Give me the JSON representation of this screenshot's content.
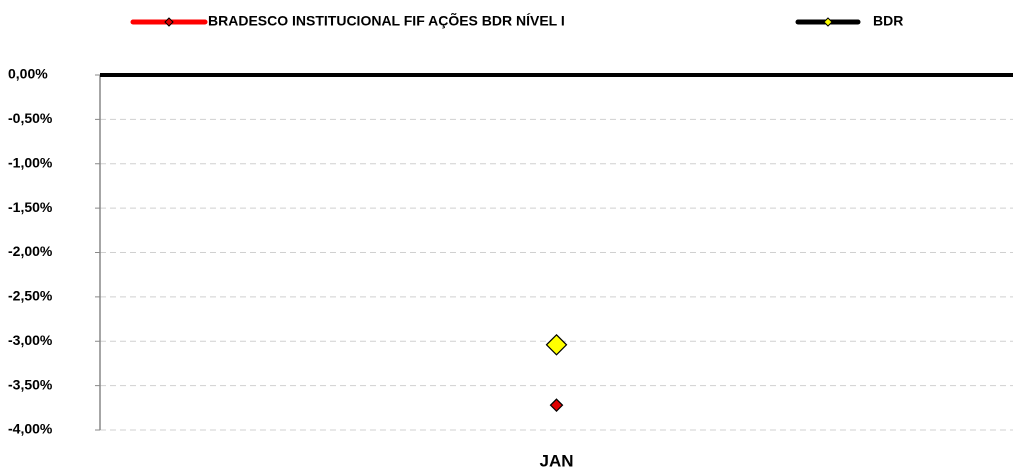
{
  "chart_data": {
    "type": "line",
    "categories": [
      "JAN"
    ],
    "series": [
      {
        "name": "BRADESCO INSTITUCIONAL FIF AÇÕES BDR NÍVEL I",
        "color": "#ff0000",
        "marker_color": "#e00000",
        "values": [
          -3.72
        ]
      },
      {
        "name": "BDR",
        "color": "#000000",
        "marker_color": "#ffff00",
        "values": [
          -3.04
        ]
      }
    ],
    "ylim": [
      -4,
      0
    ],
    "yticks": [
      {
        "value": 0,
        "label": "0,00%"
      },
      {
        "value": -0.5,
        "label": "-0,50%"
      },
      {
        "value": -1,
        "label": "-1,00%"
      },
      {
        "value": -1.5,
        "label": "-1,50%"
      },
      {
        "value": -2,
        "label": "-2,00%"
      },
      {
        "value": -2.5,
        "label": "-2,50%"
      },
      {
        "value": -3,
        "label": "-3,00%"
      },
      {
        "value": -3.5,
        "label": "-3,50%"
      },
      {
        "value": -4,
        "label": "-4,00%"
      }
    ],
    "grid": true,
    "legend": "top"
  }
}
